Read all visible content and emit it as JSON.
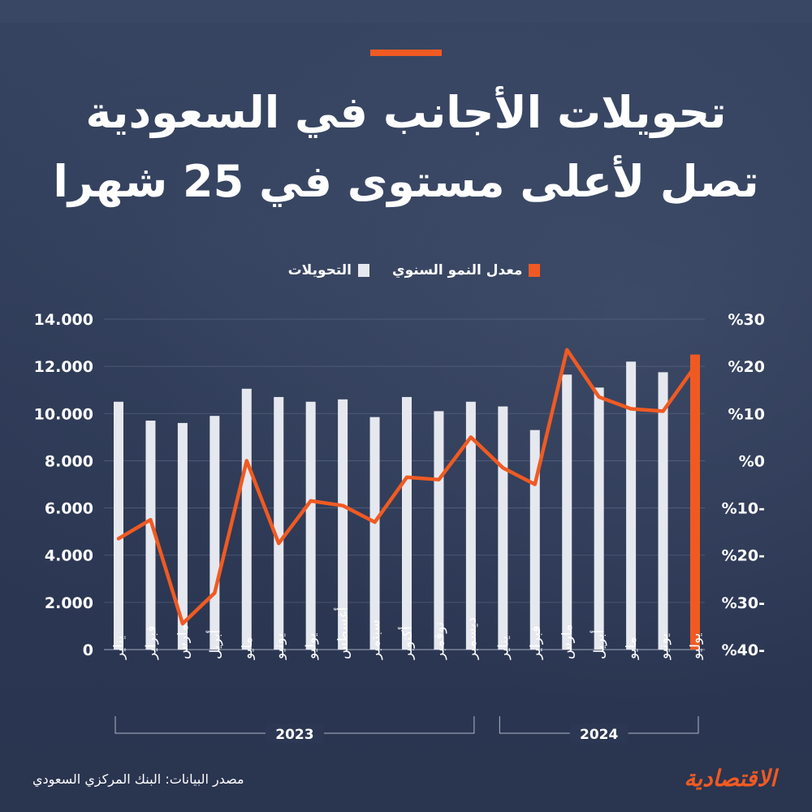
{
  "header": {
    "title_line1": "تحويلات الأجانب في السعودية",
    "title_line2": "تصل لأعلى مستوى في 25 شهرا"
  },
  "legend": {
    "growth_label": "معدل النمو السنوي",
    "transfers_label": "التحويلات"
  },
  "colors": {
    "accent": "#f05a22",
    "bar": "#e6e8ef",
    "background": "#2d3a55",
    "grid": "#6b7690"
  },
  "chart_data": {
    "type": "bar",
    "categories": [
      "يناير",
      "فبراير",
      "مارس",
      "أبريل",
      "مايو",
      "يونيو",
      "يوليو",
      "أغسطس",
      "سبتمبر",
      "أكتوبر",
      "نوفمبر",
      "ديسمبر",
      "يناير",
      "فبراير",
      "مارس",
      "أبريل",
      "مايو",
      "يونيو",
      "يوليو"
    ],
    "year_groups": [
      {
        "label": "2023",
        "start": 0,
        "end": 11
      },
      {
        "label": "2024",
        "start": 12,
        "end": 18
      }
    ],
    "series": [
      {
        "name": "التحويلات",
        "type": "bar",
        "axis": "left",
        "values": [
          10500,
          9700,
          9600,
          9900,
          11050,
          10700,
          10500,
          10600,
          9850,
          10700,
          10100,
          10500,
          10300,
          9300,
          11650,
          11100,
          12200,
          11750,
          12500
        ],
        "highlight_last": true
      },
      {
        "name": "معدل النمو السنوي",
        "type": "line",
        "axis": "right",
        "values": [
          -16.5,
          -12.5,
          -34.5,
          -28,
          0,
          -17.5,
          -8.5,
          -9.5,
          -13,
          -3.5,
          -4,
          5,
          -1.5,
          -5,
          23.5,
          13.5,
          11,
          10.5,
          20
        ]
      }
    ],
    "left_axis": {
      "min": 0,
      "max": 14000,
      "ticks": [
        0,
        2000,
        4000,
        6000,
        8000,
        10000,
        12000,
        14000
      ],
      "tick_labels": [
        "0",
        "2.000",
        "4.000",
        "6.000",
        "8.000",
        "10.000",
        "12.000",
        "14.000"
      ]
    },
    "right_axis": {
      "min": -40,
      "max": 30,
      "ticks": [
        -40,
        -30,
        -20,
        -10,
        0,
        10,
        20,
        30
      ],
      "tick_labels": [
        "%40-",
        "%30-",
        "%20-",
        "%10-",
        "%0",
        "%10",
        "%20",
        "%30"
      ]
    },
    "grid": true
  },
  "footer": {
    "source": "مصدر البيانات: البنك المركزي السعودي",
    "logo": "الاقتصادية"
  }
}
